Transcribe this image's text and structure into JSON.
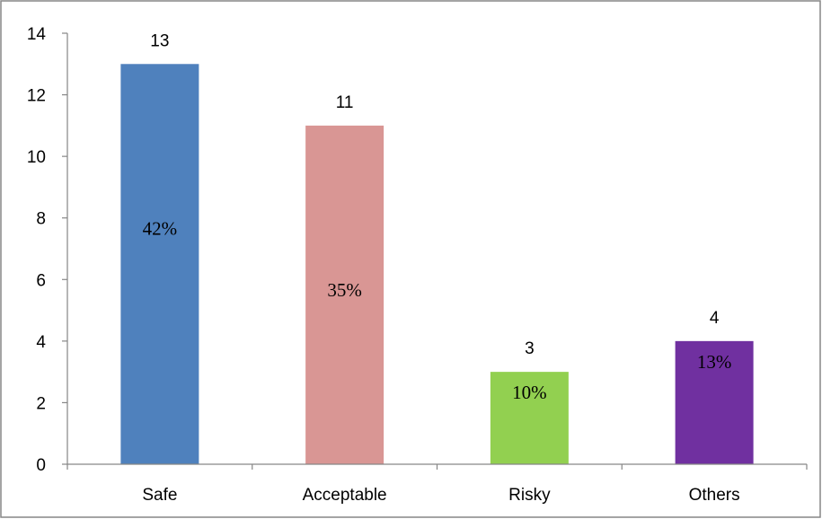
{
  "chart_data": {
    "type": "bar",
    "title": "",
    "xlabel": "",
    "ylabel": "",
    "ylim": [
      0,
      14
    ],
    "yticks": [
      "0",
      "2",
      "4",
      "6",
      "8",
      "10",
      "12",
      "14"
    ],
    "grid": false,
    "legend": "none",
    "categories": [
      "Safe",
      "Acceptable",
      "Risky",
      "Others"
    ],
    "values": [
      13,
      11,
      3,
      4
    ],
    "value_labels": [
      "13",
      "11",
      "3",
      "4"
    ],
    "percent_labels": [
      "42%",
      "35%",
      "10%",
      "13%"
    ],
    "bar_colors": [
      "#4f81bd",
      "#d99694",
      "#92d050",
      "#7030a0"
    ],
    "border_color": "#868686",
    "axis_color": "#868686"
  }
}
